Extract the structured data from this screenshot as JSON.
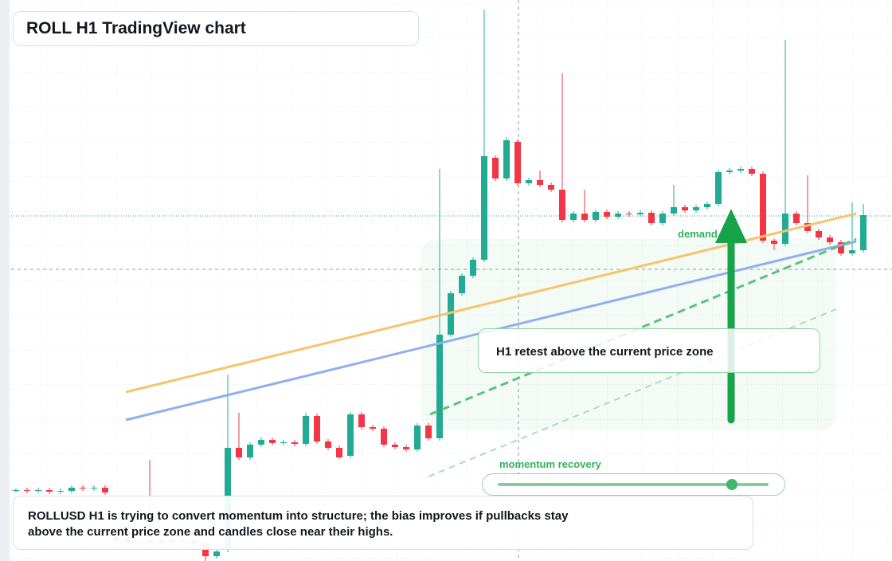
{
  "header": {
    "title": "ROLL H1 TradingView chart"
  },
  "chart_data": {
    "type": "candlestick",
    "up_color": "#22ab94",
    "down_color": "#f23645",
    "ylim": [
      0,
      70
    ],
    "open": [
      8.8,
      8.9,
      8.8,
      8.9,
      8.7,
      8.8,
      9.2,
      9.1,
      9.2,
      3.0,
      2.6,
      2.4,
      2.5,
      2.3,
      2.6,
      2.4,
      2.5,
      2.2,
      0.6,
      1.4,
      14.2,
      13.0,
      14.6,
      15.2,
      14.8,
      14.9,
      14.7,
      18.2,
      15.0,
      14.2,
      13.2,
      18.4,
      16.8,
      16.6,
      14.6,
      14.3,
      14.0,
      17.0,
      15.4,
      28.4,
      33.6,
      35.8,
      37.8,
      50.6,
      48.0,
      52.6,
      47.4,
      47.8,
      47.2,
      46.6,
      42.8,
      43.6,
      42.8,
      43.8,
      43.2,
      43.6,
      43.5,
      43.7,
      42.4,
      43.6,
      44.4,
      44.0,
      44.4,
      44.8,
      48.8,
      49.0,
      49.2,
      48.6,
      40.2,
      39.8,
      43.6,
      42.4,
      41.4,
      40.6,
      40.0,
      38.6,
      39.0
    ],
    "high": [
      9.1,
      9.2,
      9.2,
      9.2,
      9.1,
      9.5,
      9.5,
      9.5,
      9.5,
      3.3,
      2.9,
      2.8,
      12.7,
      2.9,
      2.9,
      2.8,
      2.8,
      2.4,
      1.5,
      23.4,
      18.6,
      14.9,
      15.5,
      15.5,
      15.2,
      15.2,
      18.6,
      18.5,
      15.3,
      14.5,
      18.7,
      18.7,
      17.1,
      16.9,
      14.9,
      14.6,
      17.3,
      17.3,
      49.2,
      33.9,
      36.1,
      38.1,
      69.2,
      50.9,
      53.2,
      52.9,
      48.1,
      49.0,
      47.5,
      61.2,
      43.9,
      46.6,
      44.1,
      44.1,
      43.9,
      43.9,
      44.0,
      44.0,
      43.9,
      47.2,
      44.7,
      44.7,
      45.1,
      49.1,
      49.3,
      49.5,
      49.5,
      48.9,
      40.5,
      65.4,
      43.9,
      48.4,
      41.7,
      40.9,
      40.3,
      45.0,
      44.8
    ],
    "low": [
      8.6,
      8.5,
      8.5,
      8.4,
      8.4,
      8.5,
      8.8,
      8.8,
      8.3,
      2.3,
      2.1,
      2.1,
      2.0,
      2.0,
      2.1,
      2.1,
      1.9,
      0.0,
      0.3,
      1.1,
      12.7,
      12.7,
      14.3,
      14.5,
      14.5,
      14.4,
      14.4,
      14.7,
      13.9,
      12.8,
      12.9,
      16.5,
      16.3,
      14.3,
      14.0,
      13.7,
      13.7,
      15.1,
      15.1,
      28.1,
      33.3,
      35.5,
      37.5,
      47.7,
      47.7,
      47.1,
      47.1,
      46.9,
      46.3,
      42.5,
      42.5,
      42.5,
      42.5,
      42.9,
      42.9,
      43.2,
      43.2,
      42.1,
      42.1,
      43.3,
      43.7,
      43.7,
      44.1,
      44.5,
      48.5,
      48.7,
      48.3,
      39.9,
      39.0,
      39.5,
      42.1,
      41.1,
      40.3,
      39.7,
      38.3,
      38.3,
      38.7
    ],
    "close": [
      8.9,
      8.8,
      8.9,
      8.7,
      8.8,
      9.2,
      9.1,
      9.2,
      8.6,
      2.6,
      2.4,
      2.5,
      2.3,
      2.6,
      2.4,
      2.5,
      2.2,
      0.6,
      1.2,
      14.2,
      13.0,
      14.6,
      15.2,
      14.8,
      14.9,
      14.7,
      18.2,
      15.0,
      14.2,
      13.0,
      18.4,
      16.8,
      16.6,
      14.6,
      14.3,
      14.0,
      17.0,
      15.4,
      28.4,
      33.6,
      35.8,
      37.8,
      50.8,
      48.0,
      52.8,
      47.4,
      47.8,
      47.2,
      46.6,
      42.8,
      43.6,
      42.8,
      43.8,
      43.2,
      43.6,
      43.5,
      43.7,
      42.4,
      43.6,
      44.4,
      44.0,
      44.4,
      44.8,
      48.8,
      49.0,
      49.2,
      48.6,
      40.2,
      39.8,
      43.6,
      42.4,
      41.4,
      40.6,
      40.0,
      38.6,
      39.0,
      43.4
    ]
  },
  "annotations": {
    "zone_label": "demand side",
    "retest": "H1 retest above the current price zone",
    "momentum": "momentum recovery",
    "summary": "ROLLUSD H1 is trying to convert momentum into structure; the bias improves if pullbacks stay above the current price zone and candles close near their highs."
  }
}
